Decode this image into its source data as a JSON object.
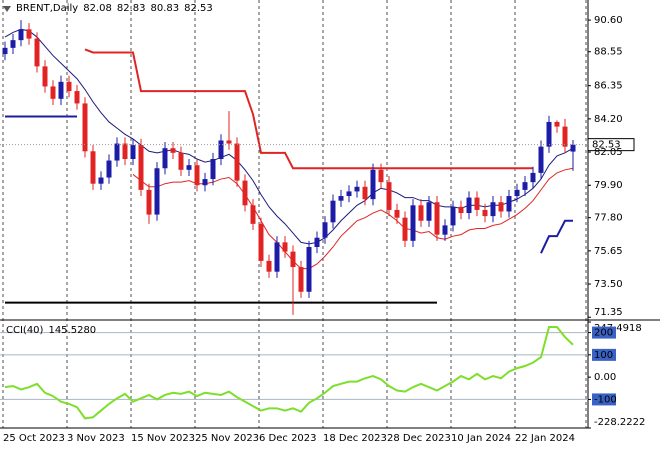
{
  "chart_data": [
    {
      "type": "candlestick",
      "title": "BRENT,Daily",
      "categories": [
        "25 Oct 2023",
        null,
        null,
        null,
        null,
        null,
        null,
        null,
        "3 Nov 2023",
        null,
        null,
        null,
        null,
        null,
        null,
        null,
        "15 Nov 2023",
        null,
        null,
        null,
        null,
        null,
        null,
        null,
        "25 Nov 2023",
        null,
        null,
        null,
        null,
        null,
        null,
        null,
        "6 Dec 2023",
        null,
        null,
        null,
        null,
        null,
        null,
        null,
        "18 Dec 2023",
        null,
        null,
        null,
        null,
        null,
        null,
        null,
        "28 Dec 2023",
        null,
        null,
        null,
        null,
        null,
        null,
        null,
        "10 Jan 2024",
        null,
        null,
        null,
        null,
        null,
        null,
        null,
        "22 Jan 2024",
        null,
        null,
        null,
        null,
        null,
        null,
        null
      ],
      "open": [
        88.4,
        88.8,
        89.3,
        90.0,
        89.4,
        87.6,
        86.3,
        85.5,
        86.6,
        86.0,
        85.2,
        82.1,
        80.0,
        80.4,
        81.5,
        82.6,
        81.6,
        82.5,
        79.6,
        78.0,
        81.0,
        82.3,
        82.0,
        80.9,
        81.2,
        79.9,
        80.3,
        81.6,
        82.8,
        82.6,
        80.2,
        78.6,
        77.4,
        75.0,
        74.3,
        76.2,
        75.6,
        74.6,
        73.0,
        75.9,
        76.5,
        77.5,
        78.9,
        79.2,
        79.5,
        79.8,
        79.0,
        80.9,
        80.1,
        78.3,
        77.8,
        76.3,
        78.6,
        77.6,
        78.8,
        76.7,
        77.3,
        78.5,
        78.1,
        79.1,
        78.3,
        77.9,
        78.8,
        78.2,
        79.2,
        79.6,
        80.1,
        80.7,
        82.4,
        84.0,
        83.7,
        82.08
      ],
      "high": [
        89.2,
        89.7,
        90.6,
        90.4,
        89.8,
        88.0,
        86.7,
        87.0,
        87.0,
        86.4,
        85.6,
        82.5,
        80.8,
        81.9,
        83.0,
        83.0,
        82.9,
        82.9,
        80.0,
        81.4,
        82.7,
        82.7,
        82.4,
        81.6,
        81.6,
        80.7,
        82.0,
        83.2,
        84.7,
        83.0,
        80.6,
        79.0,
        77.8,
        75.4,
        76.6,
        76.6,
        76.0,
        75.0,
        76.3,
        76.9,
        77.9,
        79.3,
        79.6,
        79.9,
        80.2,
        80.2,
        81.3,
        81.3,
        80.5,
        78.7,
        78.2,
        79.0,
        79.0,
        79.2,
        79.2,
        77.7,
        78.9,
        78.9,
        79.5,
        79.5,
        78.7,
        79.2,
        79.2,
        79.6,
        80.0,
        80.5,
        81.1,
        82.8,
        84.4,
        84.1,
        84.2,
        82.83
      ],
      "low": [
        88.0,
        88.4,
        88.9,
        89.0,
        87.2,
        85.9,
        85.1,
        85.1,
        85.6,
        84.8,
        81.7,
        79.6,
        79.6,
        80.0,
        81.1,
        81.2,
        81.2,
        79.2,
        77.4,
        77.6,
        80.6,
        81.6,
        80.5,
        80.5,
        79.5,
        79.5,
        79.9,
        81.2,
        82.2,
        79.8,
        78.2,
        77.0,
        74.6,
        73.9,
        73.9,
        75.2,
        71.5,
        72.6,
        72.6,
        75.5,
        76.1,
        77.1,
        78.5,
        78.8,
        79.1,
        78.6,
        78.6,
        79.7,
        77.9,
        77.4,
        75.9,
        75.9,
        77.2,
        77.2,
        76.3,
        76.3,
        76.9,
        77.7,
        77.7,
        77.9,
        77.5,
        77.5,
        77.8,
        77.8,
        78.8,
        79.2,
        79.7,
        80.3,
        82.0,
        83.3,
        82.0,
        80.83
      ],
      "close": [
        88.8,
        89.3,
        90.0,
        89.4,
        87.6,
        86.3,
        85.5,
        86.6,
        86.0,
        85.2,
        82.1,
        80.0,
        80.4,
        81.5,
        82.6,
        81.6,
        82.5,
        79.6,
        78.0,
        81.0,
        82.3,
        82.0,
        80.9,
        81.2,
        79.9,
        80.3,
        81.6,
        82.8,
        82.6,
        80.2,
        78.6,
        77.4,
        75.0,
        74.3,
        76.2,
        75.6,
        74.6,
        73.0,
        75.9,
        76.5,
        77.5,
        78.9,
        79.2,
        79.5,
        79.8,
        79.0,
        80.9,
        80.1,
        78.3,
        77.8,
        76.3,
        78.6,
        77.6,
        78.8,
        76.7,
        77.3,
        78.5,
        78.1,
        79.1,
        78.3,
        77.9,
        78.8,
        78.2,
        79.2,
        79.6,
        80.1,
        80.7,
        82.4,
        84.0,
        83.7,
        82.4,
        82.53
      ],
      "up_color": "#1c1ca6",
      "down_color": "#e02424",
      "lines": [
        {
          "color": "#1c1c80",
          "width": 1,
          "values": [
            89.5,
            89.8,
            90.0,
            89.9,
            89.5,
            88.9,
            88.3,
            87.8,
            87.3,
            86.8,
            86.1,
            85.3,
            84.6,
            84.0,
            83.6,
            83.2,
            82.9,
            82.5,
            82.1,
            82.0,
            82.1,
            82.2,
            82.0,
            81.9,
            81.6,
            81.4,
            81.5,
            81.7,
            81.9,
            81.5,
            80.9,
            80.2,
            79.3,
            78.5,
            77.9,
            77.4,
            76.8,
            76.2,
            76.1,
            76.2,
            76.5,
            77.0,
            77.6,
            78.1,
            78.6,
            78.9,
            79.4,
            79.7,
            79.6,
            79.4,
            79.1,
            79.1,
            78.9,
            78.9,
            78.6,
            78.5,
            78.5,
            78.4,
            78.6,
            78.6,
            78.5,
            78.6,
            78.6,
            78.8,
            79.0,
            79.3,
            79.7,
            80.3,
            81.2,
            81.8,
            82.0,
            82.3
          ]
        },
        {
          "color": "#e02424",
          "width": 1,
          "values": [
            null,
            null,
            null,
            null,
            null,
            null,
            null,
            null,
            null,
            null,
            null,
            null,
            null,
            null,
            null,
            null,
            80.6,
            80.2,
            79.8,
            79.8,
            80.0,
            80.1,
            80.1,
            80.2,
            80.0,
            80.0,
            80.1,
            80.3,
            80.4,
            80.0,
            79.3,
            78.5,
            77.6,
            76.7,
            76.2,
            75.6,
            75.0,
            74.5,
            74.5,
            74.8,
            75.3,
            75.9,
            76.6,
            77.1,
            77.6,
            77.8,
            78.1,
            78.3,
            78.0,
            77.6,
            77.1,
            77.0,
            76.8,
            76.9,
            76.5,
            76.4,
            76.6,
            76.7,
            77.0,
            77.1,
            77.1,
            77.3,
            77.4,
            77.7,
            78.0,
            78.4,
            78.9,
            79.6,
            80.3,
            80.7,
            80.9,
            81.0
          ]
        },
        {
          "color": "#e02424",
          "width": 2,
          "values": [
            null,
            null,
            null,
            null,
            null,
            null,
            null,
            null,
            null,
            null,
            88.7,
            88.5,
            88.5,
            88.5,
            88.5,
            88.5,
            88.5,
            86.0,
            86.0,
            86.0,
            86.0,
            86.0,
            86.0,
            86.0,
            86.0,
            86.0,
            86.0,
            86.0,
            86.0,
            86.0,
            86.0,
            84.5,
            82.0,
            82.0,
            82.0,
            82.0,
            81.0,
            81.0,
            81.0,
            81.0,
            81.0,
            81.0,
            81.0,
            81.0,
            81.0,
            81.0,
            81.0,
            81.0,
            81.0,
            81.0,
            81.0,
            81.0,
            81.0,
            81.0,
            81.0,
            81.0,
            81.0,
            81.0,
            81.0,
            81.0,
            81.0,
            81.0,
            81.0,
            81.0,
            81.0,
            81.0,
            81.0,
            null,
            null,
            null,
            null,
            null
          ]
        },
        {
          "color": "#1c1ca6",
          "width": 2,
          "values": [
            null,
            null,
            null,
            null,
            null,
            null,
            null,
            null,
            null,
            null,
            null,
            null,
            null,
            null,
            null,
            null,
            null,
            null,
            null,
            null,
            null,
            null,
            null,
            null,
            null,
            null,
            null,
            null,
            null,
            null,
            null,
            null,
            null,
            null,
            null,
            null,
            null,
            null,
            null,
            null,
            null,
            null,
            null,
            null,
            null,
            null,
            null,
            null,
            null,
            null,
            null,
            null,
            null,
            null,
            null,
            null,
            null,
            null,
            null,
            null,
            null,
            null,
            null,
            null,
            null,
            null,
            null,
            75.5,
            76.6,
            76.6,
            77.6,
            77.6
          ]
        },
        {
          "color": "#1c1ca6",
          "width": 2,
          "values": [
            84.35,
            84.35,
            84.35,
            84.35,
            84.35,
            84.35,
            84.35,
            84.35,
            84.35,
            84.35,
            null,
            null,
            null,
            null,
            null,
            null,
            null,
            null,
            null,
            null,
            null,
            null,
            null,
            null,
            null,
            null,
            null,
            null,
            null,
            null,
            null,
            null,
            null,
            null,
            null,
            null,
            null,
            null,
            null,
            null,
            null,
            null,
            null,
            null,
            null,
            null,
            null,
            null,
            null,
            null,
            null,
            null,
            null,
            null,
            null,
            null,
            null,
            null,
            null,
            null,
            null,
            null,
            null,
            null,
            null,
            null,
            null,
            null,
            null,
            null,
            null,
            null
          ]
        },
        {
          "color": "#000000",
          "width": 2,
          "values": [
            72.3,
            72.3,
            72.3,
            72.3,
            72.3,
            72.3,
            72.3,
            72.3,
            72.3,
            72.3,
            72.3,
            72.3,
            72.3,
            72.3,
            72.3,
            72.3,
            72.3,
            72.3,
            72.3,
            72.3,
            72.3,
            72.3,
            72.3,
            72.3,
            72.3,
            72.3,
            72.3,
            72.3,
            72.3,
            72.3,
            72.3,
            72.3,
            72.3,
            72.3,
            72.3,
            72.3,
            72.3,
            72.3,
            72.3,
            72.3,
            72.3,
            72.3,
            72.3,
            72.3,
            72.3,
            72.3,
            72.3,
            72.3,
            72.3,
            72.3,
            72.3,
            72.3,
            72.3,
            72.3,
            72.3,
            null,
            null,
            null,
            null,
            null,
            null,
            null,
            null,
            null,
            null,
            null,
            null,
            null,
            null,
            null,
            null,
            null
          ]
        }
      ],
      "ylim": [
        71.3,
        91.9
      ],
      "yticks": [
        {
          "value": 90.6,
          "label": "90.60"
        },
        {
          "value": 88.55,
          "label": "88.55"
        },
        {
          "value": 86.35,
          "label": "86.35"
        },
        {
          "value": 84.2,
          "label": "84.20"
        },
        {
          "value": 82.05,
          "label": "82.05"
        },
        {
          "value": 79.9,
          "label": "79.90"
        },
        {
          "value": 77.8,
          "label": "77.80"
        },
        {
          "value": 75.65,
          "label": "75.65"
        },
        {
          "value": 73.5,
          "label": "73.50"
        },
        {
          "value": 71.35,
          "label": "71.35"
        }
      ],
      "grid": true
    },
    {
      "type": "line",
      "title": "CCI(40)",
      "color": "#7ddf2b",
      "values": [
        -45,
        -40,
        -55,
        -45,
        -30,
        -70,
        -85,
        -110,
        -120,
        -135,
        -185,
        -180,
        -150,
        -120,
        -95,
        -75,
        -110,
        -95,
        -80,
        -100,
        -80,
        -70,
        -75,
        -65,
        -85,
        -70,
        -75,
        -80,
        -65,
        -90,
        -110,
        -130,
        -150,
        -140,
        -140,
        -150,
        -140,
        -155,
        -115,
        -95,
        -70,
        -40,
        -30,
        -20,
        -20,
        -5,
        5,
        -10,
        -40,
        -60,
        -65,
        -45,
        -30,
        -45,
        -60,
        -40,
        -20,
        5,
        -10,
        15,
        -10,
        5,
        -5,
        25,
        40,
        50,
        65,
        90,
        225,
        225,
        180,
        145.528
      ],
      "value_labels": [
        null,
        null,
        null,
        null,
        null,
        null,
        null,
        null,
        null,
        null,
        null,
        null,
        null,
        null,
        null,
        null,
        null,
        null,
        null,
        null,
        null,
        null,
        null,
        null,
        null,
        null,
        null,
        null,
        null,
        null,
        null,
        null,
        null,
        null,
        null,
        null,
        null,
        null,
        null,
        null,
        null,
        null,
        null,
        null,
        null,
        null,
        null,
        null,
        null,
        null,
        null,
        null,
        null,
        null,
        null,
        null,
        null,
        null,
        null,
        null,
        null,
        null,
        null,
        null,
        null,
        null,
        null,
        null,
        null,
        null,
        null,
        "145.5280"
      ],
      "ylim": [
        -228.2222,
        247.4918
      ],
      "yticks": [
        247.4918,
        200,
        100,
        {
          "value": 0,
          "label": "0.00"
        },
        -100,
        -228.2222
      ],
      "levels": [
        200,
        100,
        -100
      ]
    }
  ]
}
